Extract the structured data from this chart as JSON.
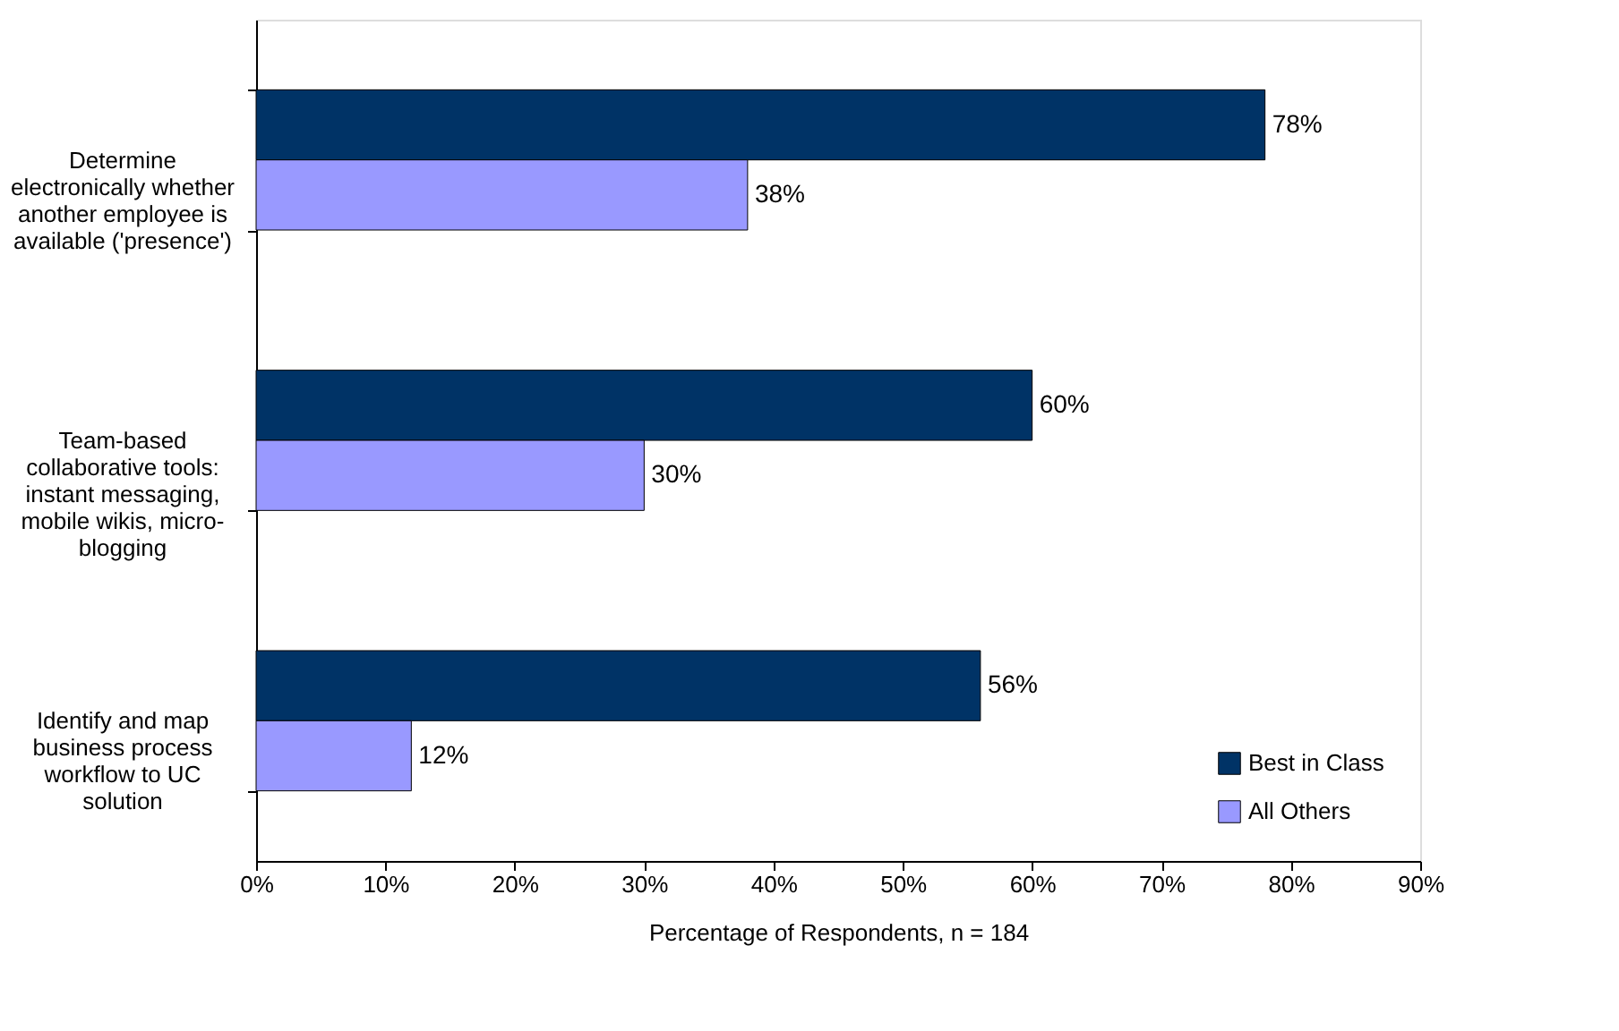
{
  "chart_data": {
    "type": "bar",
    "orientation": "horizontal",
    "xlabel": "Percentage of Respondents,  n = 184",
    "categories": [
      "Determine electronically whether another employee is available ('presence')",
      "Team-based collaborative tools: instant messaging, mobile wikis, micro-blogging",
      "Identify and map business process workflow to UC solution"
    ],
    "series": [
      {
        "name": "Best in Class",
        "color": "#003366",
        "values": [
          78,
          60,
          56
        ],
        "value_labels": [
          "78%",
          "60%",
          "56%"
        ]
      },
      {
        "name": "All Others",
        "color": "#9999ff",
        "values": [
          38,
          30,
          12
        ],
        "value_labels": [
          "38%",
          "30%",
          "12%"
        ]
      }
    ],
    "xlim": [
      0,
      90
    ],
    "xticks": [
      {
        "value": 0,
        "label": "0%"
      },
      {
        "value": 10,
        "label": "10%"
      },
      {
        "value": 20,
        "label": "20%"
      },
      {
        "value": 30,
        "label": "30%"
      },
      {
        "value": 40,
        "label": "40%"
      },
      {
        "value": 50,
        "label": "50%"
      },
      {
        "value": 60,
        "label": "60%"
      },
      {
        "value": 70,
        "label": "70%"
      },
      {
        "value": 80,
        "label": "80%"
      },
      {
        "value": 90,
        "label": "90%"
      }
    ],
    "grid": false,
    "legend": "bottom right"
  }
}
